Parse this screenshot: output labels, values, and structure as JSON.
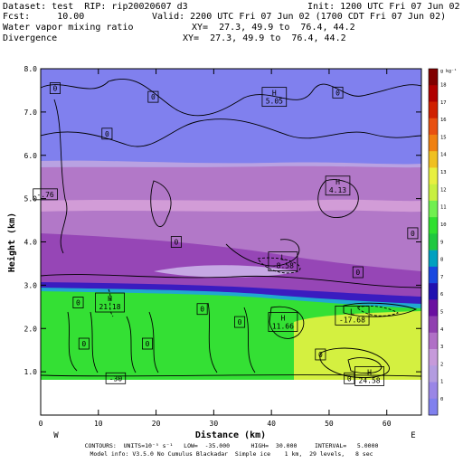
{
  "header": {
    "dataset": "Dataset: test  RIP: rip20020607 d3",
    "init": "Init: 1200 UTC Fri 07 Jun 02",
    "fcst": "Fcst:     10.00",
    "valid": "Valid: 2200 UTC Fri 07 Jun 02 (1700 CDT Fri 07 Jun 02)",
    "field1": "Water vapor mixing ratio",
    "xy1": "XY=  27.3, 49.9 to  76.4, 44.2",
    "field2": "Divergence",
    "xy2": "XY=  27.3, 49.9 to  76.4, 44.2"
  },
  "footer": {
    "line1": "CONTOURS:  UNITS=10⁻⁵ s⁻¹   LOW=  -35.000      HIGH=  30.000     INTERVAL=   5.0000",
    "line2": "Model info: V3.5.0 No Cumulus Blackadar  Simple ice    1 km,  29 levels,   8 sec"
  },
  "colors": {
    "colorbar": [
      "#8080ee",
      "#9a86e6",
      "#b39ce0",
      "#c69ada",
      "#b070c6",
      "#9040b0",
      "#6a10a0",
      "#2010b0",
      "#1848e0",
      "#00a0c0",
      "#20c840",
      "#30e030",
      "#70f050",
      "#c8f040",
      "#e8f040",
      "#f0c020",
      "#f08010",
      "#e85010",
      "#d02000",
      "#b00000",
      "#800000"
    ],
    "contour": "#000000"
  },
  "chart_data": {
    "type": "heatmap",
    "xlabel": "Distance (km)",
    "ylabel": "Height (km)",
    "xlim": [
      0,
      66
    ],
    "ylim": [
      0,
      8
    ],
    "x_ticks": [
      0,
      10,
      20,
      30,
      40,
      50,
      60
    ],
    "x_tick_labels": [
      "0",
      "10",
      "20",
      "30",
      "40",
      "50",
      "60"
    ],
    "y_ticks": [
      1,
      2,
      3,
      4,
      5,
      6,
      7,
      8
    ],
    "y_tick_labels": [
      "1.0",
      "2.0",
      "3.0",
      "4.0",
      "5.0",
      "6.0",
      "7.0",
      "8.0"
    ],
    "x_end_labels": {
      "left": "W",
      "right": "E"
    },
    "colorbar": {
      "units_label": "g kg⁻¹",
      "labels": [
        "18",
        "17",
        "16",
        "15",
        "14",
        "13",
        "12",
        "11",
        "10",
        "9",
        "8",
        "7",
        "6",
        "5",
        "4",
        "3",
        "2",
        "1",
        "0"
      ]
    },
    "annotations": [
      {
        "text": "H\n5.05",
        "x": 40.5,
        "y": 7.35
      },
      {
        "text": "H\n4.13",
        "x": 51.5,
        "y": 5.3
      },
      {
        "text": "L\n-8.58",
        "x": 42.0,
        "y": 3.55
      },
      {
        "text": "H\n21.18",
        "x": 12.0,
        "y": 2.6
      },
      {
        "text": "H\n11.66",
        "x": 42.0,
        "y": 2.15
      },
      {
        "text": "L\n-17.68",
        "x": 54.0,
        "y": 2.3
      },
      {
        "text": "H\n24.58",
        "x": 57.0,
        "y": 0.9
      },
      {
        "text": "0",
        "x": 2.5,
        "y": 7.55
      },
      {
        "text": "0",
        "x": 19.5,
        "y": 7.35
      },
      {
        "text": "0",
        "x": 51.5,
        "y": 7.45
      },
      {
        "text": "0",
        "x": 11.5,
        "y": 6.5
      },
      {
        "text": "-.76",
        "x": 0.8,
        "y": 5.1
      },
      {
        "text": "0",
        "x": 23.5,
        "y": 4.0
      },
      {
        "text": "0",
        "x": 64.5,
        "y": 4.2
      },
      {
        "text": "0",
        "x": 55.0,
        "y": 3.3
      },
      {
        "text": "0",
        "x": 6.5,
        "y": 2.6
      },
      {
        "text": "0",
        "x": 28.0,
        "y": 2.45
      },
      {
        "text": "0",
        "x": 34.5,
        "y": 2.15
      },
      {
        "text": "0",
        "x": 7.5,
        "y": 1.65
      },
      {
        "text": "0",
        "x": 18.5,
        "y": 1.65
      },
      {
        "text": "0",
        "x": 48.5,
        "y": 1.4
      },
      {
        "text": "-30",
        "x": 13.0,
        "y": 0.85
      },
      {
        "text": "0",
        "x": 53.5,
        "y": 0.85
      }
    ]
  }
}
